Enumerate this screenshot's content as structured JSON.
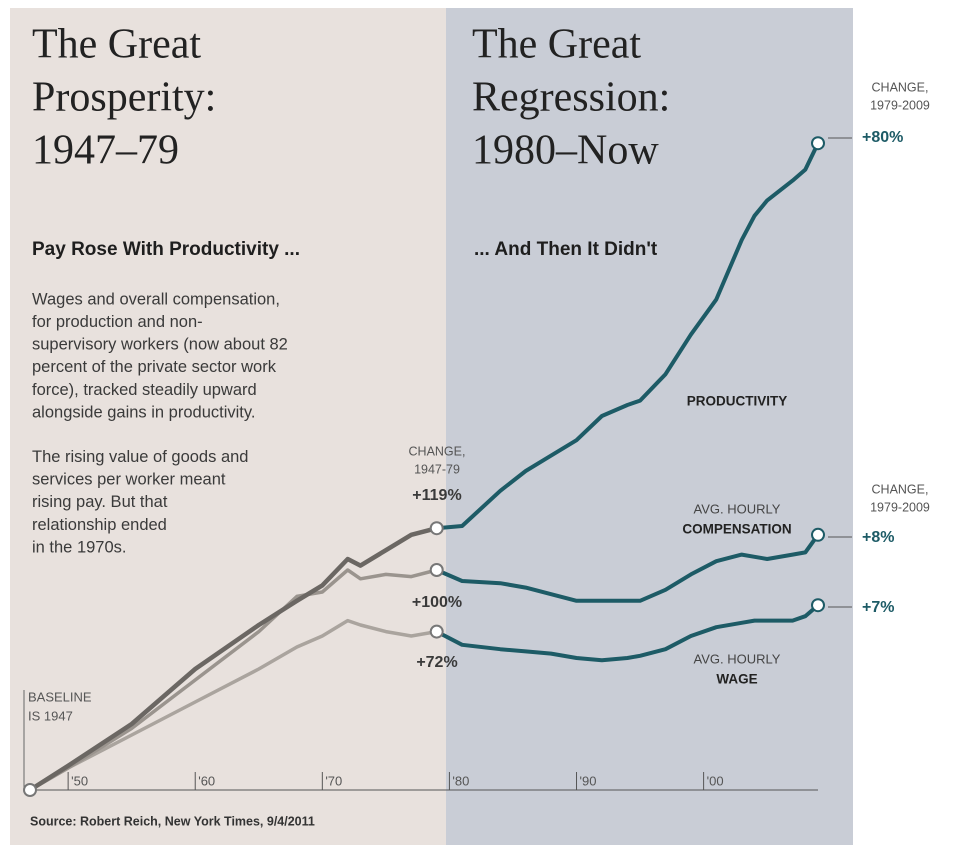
{
  "chart_data": {
    "type": "line",
    "left_panel": {
      "title_lines": [
        "The Great",
        "Prosperity:",
        "1947–79"
      ],
      "subtitle": "Pay Rose With Productivity ...",
      "paragraphs": [
        [
          "Wages and overall compensation,",
          "for production and non-",
          "supervisory workers (now about 82",
          "percent of the private sector work",
          "force), tracked steadily upward",
          "alongside gains in productivity."
        ],
        [
          "The rising value of goods and",
          "services per worker meant",
          "rising pay. But that",
          "relationship ended",
          "in the 1970s."
        ]
      ]
    },
    "right_panel": {
      "title_lines": [
        "The Great",
        "Regression:",
        "1980–Now"
      ],
      "subtitle": "... And Then It Didn't"
    },
    "mid_labels": {
      "label_lines": [
        "CHANGE,",
        "1947-79"
      ],
      "values": [
        "+119%",
        "+100%",
        "+72%"
      ]
    },
    "end_labels": [
      {
        "label_lines": [
          "CHANGE,",
          "1979-2009"
        ],
        "value": "+80%"
      },
      {
        "label_lines": [
          "CHANGE,",
          "1979-2009"
        ],
        "value": "+8%"
      },
      {
        "value": "+7%"
      }
    ],
    "baseline_lines": [
      "BASELINE",
      "IS 1947"
    ],
    "source": "Source: Robert Reich, New York Times, 9/4/2011",
    "split": 1979,
    "x": [
      1947,
      1950,
      1955,
      1960,
      1965,
      1968,
      1970,
      1972,
      1973,
      1975,
      1977,
      1979,
      1981,
      1984,
      1986,
      1988,
      1990,
      1992,
      1994,
      1995,
      1997,
      1999,
      2001,
      2003,
      2004,
      2005,
      2007,
      2008,
      2009
    ],
    "xlim": [
      1947,
      2009
    ],
    "xticks": [
      {
        "value": 1950,
        "label": "'50"
      },
      {
        "value": 1960,
        "label": "'60"
      },
      {
        "value": 1970,
        "label": "'70"
      },
      {
        "value": 1980,
        "label": "'80"
      },
      {
        "value": 1990,
        "label": "'90"
      },
      {
        "value": 2000,
        "label": "'00"
      }
    ],
    "ylim": [
      0,
      350
    ],
    "series": [
      {
        "label_lines": [
          "PRODUCTIVITY"
        ],
        "color": "#1d5b66",
        "early_color": "#6b6763",
        "values": [
          0,
          11,
          30,
          55,
          75,
          86,
          93,
          105,
          102,
          109,
          116,
          119,
          120,
          136,
          145,
          152,
          159,
          170,
          175,
          177,
          189,
          207,
          223,
          250,
          261,
          268,
          277,
          282,
          294
        ]
      },
      {
        "label_lines": [
          "AVG. HOURLY",
          "COMPENSATION"
        ],
        "color": "#1d5b66",
        "early_color": "#9a948e",
        "values": [
          0,
          10,
          28,
          50,
          72,
          88,
          90,
          100,
          96,
          98,
          97,
          100,
          95,
          94,
          92,
          89,
          86,
          86,
          86,
          86,
          91,
          98,
          104,
          107,
          106,
          105,
          107,
          108,
          116
        ]
      },
      {
        "label_lines": [
          "AVG. HOURLY",
          "WAGE"
        ],
        "color": "#1d5b66",
        "early_color": "#aaa49e",
        "values": [
          0,
          10,
          25,
          40,
          55,
          65,
          70,
          77,
          75,
          72,
          70,
          72,
          66,
          64,
          63,
          62,
          60,
          59,
          60,
          61,
          64,
          70,
          74,
          76,
          77,
          77,
          77,
          79,
          84
        ]
      }
    ]
  }
}
